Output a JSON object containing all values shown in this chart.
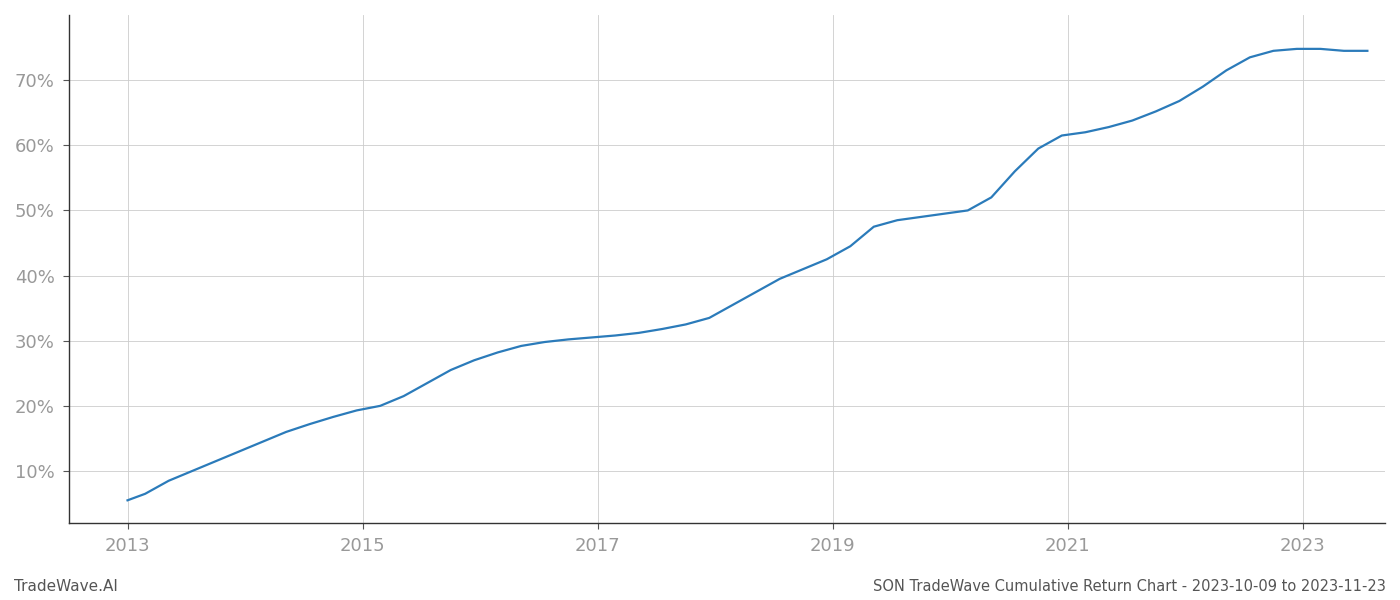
{
  "title": "SON TradeWave Cumulative Return Chart - 2023-10-09 to 2023-11-23",
  "watermark": "TradeWave.AI",
  "line_color": "#2b7bba",
  "background_color": "#ffffff",
  "grid_color": "#cccccc",
  "x_years": [
    2013,
    2015,
    2017,
    2019,
    2021,
    2023
  ],
  "xlim": [
    2012.5,
    2023.7
  ],
  "ylim": [
    0.02,
    0.8
  ],
  "yticks": [
    0.1,
    0.2,
    0.3,
    0.4,
    0.5,
    0.6,
    0.7
  ],
  "data_x": [
    2013.0,
    2013.15,
    2013.35,
    2013.55,
    2013.75,
    2013.95,
    2014.15,
    2014.35,
    2014.55,
    2014.75,
    2014.95,
    2015.15,
    2015.35,
    2015.55,
    2015.75,
    2015.95,
    2016.15,
    2016.35,
    2016.55,
    2016.75,
    2016.95,
    2017.15,
    2017.35,
    2017.55,
    2017.75,
    2017.95,
    2018.15,
    2018.35,
    2018.55,
    2018.75,
    2018.95,
    2019.15,
    2019.35,
    2019.55,
    2019.75,
    2019.95,
    2020.15,
    2020.35,
    2020.55,
    2020.75,
    2020.95,
    2021.15,
    2021.35,
    2021.55,
    2021.75,
    2021.95,
    2022.15,
    2022.35,
    2022.55,
    2022.75,
    2022.95,
    2023.15,
    2023.35,
    2023.55
  ],
  "data_y": [
    0.055,
    0.065,
    0.085,
    0.1,
    0.115,
    0.13,
    0.145,
    0.16,
    0.172,
    0.183,
    0.193,
    0.2,
    0.215,
    0.235,
    0.255,
    0.27,
    0.282,
    0.292,
    0.298,
    0.302,
    0.305,
    0.308,
    0.312,
    0.318,
    0.325,
    0.335,
    0.355,
    0.375,
    0.395,
    0.41,
    0.425,
    0.445,
    0.475,
    0.485,
    0.49,
    0.495,
    0.5,
    0.52,
    0.56,
    0.595,
    0.615,
    0.62,
    0.628,
    0.638,
    0.652,
    0.668,
    0.69,
    0.715,
    0.735,
    0.745,
    0.748,
    0.748,
    0.745,
    0.745
  ],
  "line_width": 1.6,
  "tick_label_color": "#999999",
  "title_fontsize": 10.5,
  "watermark_fontsize": 11,
  "spine_color": "#333333",
  "tick_color": "#555555"
}
